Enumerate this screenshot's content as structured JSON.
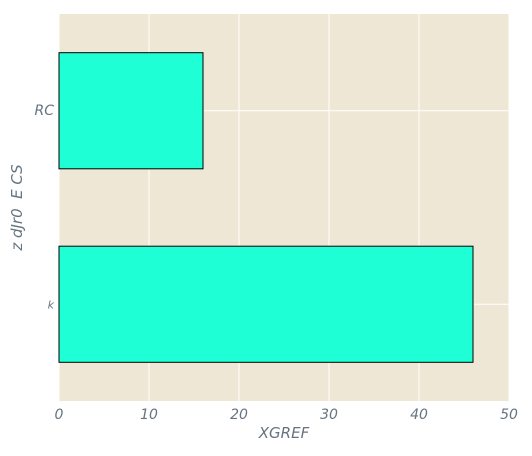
{
  "chart_data": {
    "type": "bar",
    "orientation": "horizontal",
    "categories": [
      "k",
      "RC"
    ],
    "values": [
      46,
      16
    ],
    "xlabel": "XGREF",
    "ylabel": "z dJr0  E CS",
    "xlim": [
      0,
      50
    ],
    "xticks": [
      0,
      10,
      20,
      30,
      40,
      50
    ],
    "grid": true,
    "colors": {
      "background": "#EFE7D5",
      "bar": "#1FFFD6",
      "bar_edge": "#000000",
      "grid": "#FFFFFF",
      "text": "#667480"
    }
  }
}
